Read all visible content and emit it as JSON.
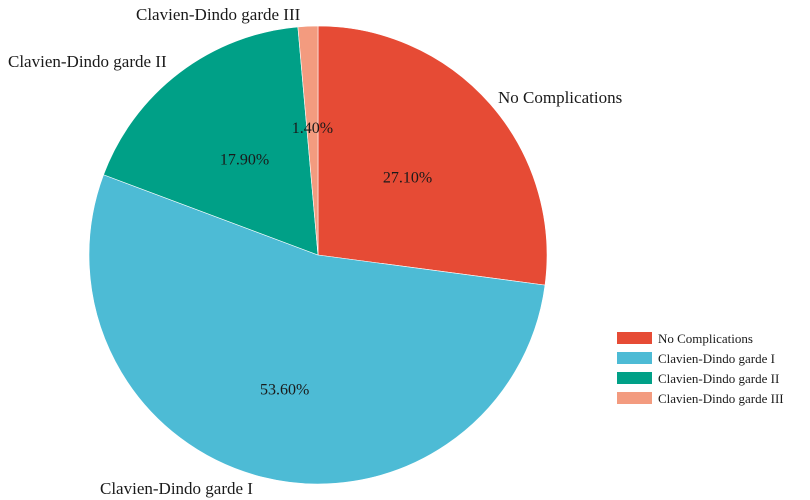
{
  "chart_data": {
    "type": "pie",
    "title": "",
    "legend_position": "bottom-right",
    "start_angle": "12 o'clock, clockwise",
    "slices": [
      {
        "label": "No Complications",
        "value": 27.1,
        "pct_label": "27.10%",
        "color": "#E64B35"
      },
      {
        "label": "Clavien-Dindo garde I",
        "value": 53.6,
        "pct_label": "53.60%",
        "color": "#4DBBD5"
      },
      {
        "label": "Clavien-Dindo garde II",
        "value": 17.9,
        "pct_label": "17.90%",
        "color": "#00A087"
      },
      {
        "label": "Clavien-Dindo garde III",
        "value": 1.4,
        "pct_label": "1.40%",
        "color": "#F39B7F"
      }
    ]
  }
}
